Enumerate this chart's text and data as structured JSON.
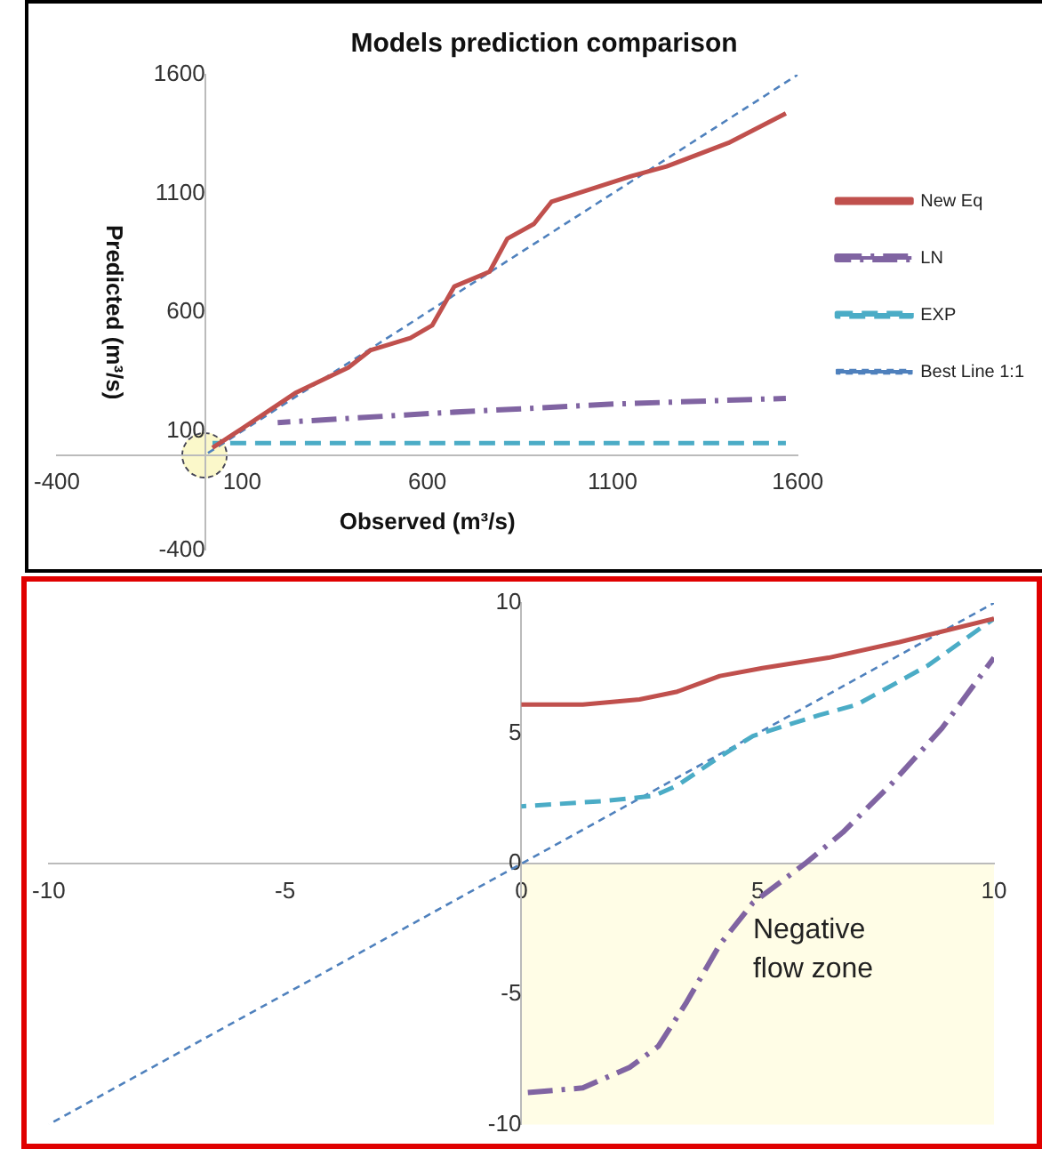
{
  "chart_data": [
    {
      "type": "line",
      "title": "Models prediction comparison",
      "xlabel": "Observed (m³/s)",
      "ylabel": "Predicted (m³/s)",
      "xlim": [
        -400,
        1600
      ],
      "xticks": [
        -400,
        100,
        600,
        1100,
        1600
      ],
      "ylim": [
        -400,
        1600
      ],
      "yticks": [
        -400,
        100,
        600,
        1100,
        1600
      ],
      "grid": false,
      "legend": "right",
      "series": [
        {
          "name": "New Eq",
          "color": "#c0504d",
          "line_style": "solid",
          "x": [
            20,
            100,
            243,
            387,
            446,
            554,
            613,
            673,
            768,
            816,
            888,
            935,
            1150,
            1246,
            1413,
            1568
          ],
          "values": [
            30,
            111,
            260,
            368,
            440,
            492,
            545,
            709,
            771,
            910,
            972,
            1065,
            1173,
            1214,
            1313,
            1437
          ]
        },
        {
          "name": "LN",
          "color": "#8064a2",
          "line_style": "dashdot",
          "x": [
            196,
            625,
            1103,
            1568
          ],
          "values": [
            136,
            176,
            214,
            238
          ]
        },
        {
          "name": "EXP",
          "color": "#4bacc6",
          "line_style": "dashed",
          "x": [
            20,
            1568
          ],
          "values": [
            50,
            50
          ]
        },
        {
          "name": "Best Line 1:1",
          "color": "#4f81bd",
          "line_style": "dashed",
          "x": [
            0,
            1600
          ],
          "values": [
            0,
            1600
          ]
        }
      ]
    },
    {
      "type": "line",
      "xlim": [
        -10,
        10
      ],
      "xticks": [
        -10,
        -5,
        0,
        5,
        10
      ],
      "ylim": [
        -10,
        10
      ],
      "yticks": [
        -10,
        -5,
        0,
        5,
        10
      ],
      "grid": false,
      "bands": [
        {
          "axis": "y",
          "from": -10,
          "to": 0,
          "label": "Negative flow zone",
          "color": "#fffde6"
        }
      ],
      "series": [
        {
          "color": "#c0504d",
          "line_style": "solid",
          "x": [
            0,
            1.3,
            2.5,
            3.3,
            4.2,
            5.1,
            6.5,
            8,
            10
          ],
          "values": [
            6.1,
            6.1,
            6.3,
            6.6,
            7.2,
            7.5,
            7.9,
            8.5,
            9.4
          ]
        },
        {
          "color": "#4bacc6",
          "line_style": "dashed",
          "x": [
            0,
            1.7,
            2.8,
            3.3,
            4.2,
            4.9,
            6.3,
            7.1,
            8.6,
            10
          ],
          "values": [
            2.2,
            2.4,
            2.6,
            3.0,
            4.1,
            4.9,
            5.7,
            6.1,
            7.6,
            9.4
          ]
        },
        {
          "color": "#8064a2",
          "line_style": "dashdot",
          "x": [
            0,
            1.3,
            2.3,
            2.9,
            3.5,
            4.2,
            4.9,
            6,
            6.8,
            7.8,
            8.9,
            10
          ],
          "values": [
            -8.8,
            -8.6,
            -7.8,
            -7.0,
            -5.3,
            -3.1,
            -1.5,
            0,
            1.2,
            3.0,
            5.2,
            7.9
          ]
        },
        {
          "color": "#4f81bd",
          "line_style": "dashed",
          "x": [
            -10,
            10
          ],
          "values": [
            -10,
            10
          ]
        }
      ]
    }
  ]
}
